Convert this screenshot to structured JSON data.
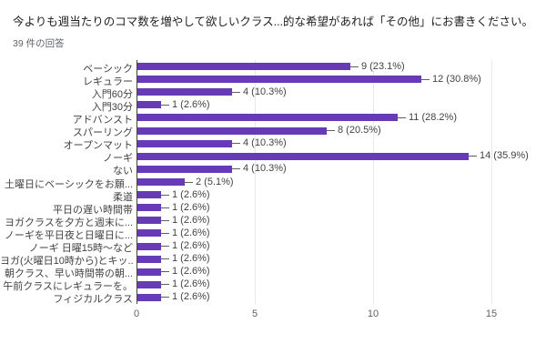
{
  "header": {
    "title": "今よりも週当たりのコマ数を増やして欲しいクラス...的な希望があれば「その他」にお書きください。",
    "response_count": "39 件の回答"
  },
  "chart_data": {
    "type": "bar",
    "orientation": "horizontal",
    "title": "今よりも週当たりのコマ数を増やして欲しいクラス...的な希望があれば「その他」にお書きください。",
    "subtitle": "39 件の回答",
    "categories": [
      "ベーシック",
      "レギュラー",
      "入門60分",
      "入門30分",
      "アドバンスト",
      "スパーリング",
      "オープンマット",
      "ノーギ",
      "ない",
      "土曜日にベーシックをお願...",
      "柔道",
      "平日の遅い時間帯",
      "ヨガクラスを夕方と週末に...",
      "ノーギを平日夜と日曜日に...",
      "ノーギ 日曜15時〜など",
      "ヨガ(火曜日10時から)とキッ...",
      "朝クラス、早い時間帯の朝...",
      "午前クラスにレギュラーを。",
      "フィジカルクラス"
    ],
    "values": [
      9,
      12,
      4,
      1,
      11,
      8,
      4,
      14,
      4,
      2,
      1,
      1,
      1,
      1,
      1,
      1,
      1,
      1,
      1
    ],
    "value_labels": [
      "9 (23.1%)",
      "12 (30.8%)",
      "4 (10.3%)",
      "1 (2.6%)",
      "11 (28.2%)",
      "8 (20.5%)",
      "4 (10.3%)",
      "14 (35.9%)",
      "4 (10.3%)",
      "2 (5.1%)",
      "1 (2.6%)",
      "1 (2.6%)",
      "1 (2.6%)",
      "1 (2.6%)",
      "1 (2.6%)",
      "1 (2.6%)",
      "1 (2.6%)",
      "1 (2.6%)",
      "1 (2.6%)"
    ],
    "xticks": [
      0,
      5,
      10,
      15
    ],
    "xlim": [
      0,
      16
    ],
    "grid": true,
    "legend": "none",
    "bar_color": "#673ab7"
  },
  "colors": {
    "bar": "#673ab7",
    "axis_line": "#424242",
    "gridline": "#e8e8e8",
    "label_text": "#424242",
    "tick_text": "#616161",
    "title_text": "#212121",
    "subtitle_text": "#5f6368",
    "background": "#ffffff"
  }
}
